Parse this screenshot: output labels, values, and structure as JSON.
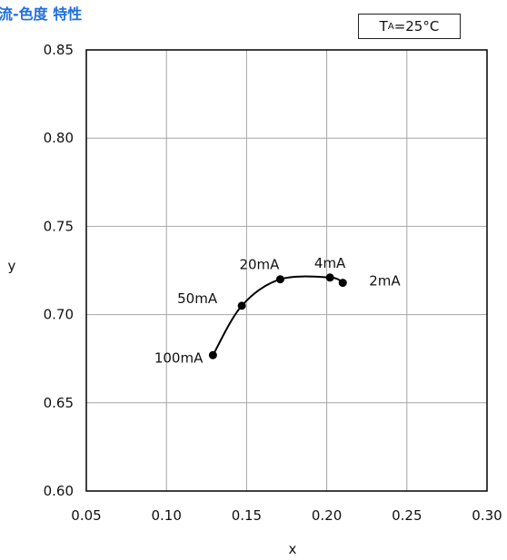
{
  "header": {
    "title": "電流-色度 特性"
  },
  "legend": {
    "prefix": "T",
    "subscript": "A",
    "suffix": "=25°C"
  },
  "chart_data": {
    "type": "line",
    "title": "",
    "xlabel": "x",
    "ylabel": "y",
    "xlim": [
      0.05,
      0.3
    ],
    "ylim": [
      0.6,
      0.85
    ],
    "x_ticks": [
      "0.05",
      "0.10",
      "0.15",
      "0.20",
      "0.25",
      "0.30"
    ],
    "y_ticks": [
      "0.60",
      "0.65",
      "0.70",
      "0.75",
      "0.80",
      "0.85"
    ],
    "grid": true,
    "series": [
      {
        "color": "#000000",
        "points": [
          {
            "x": 0.129,
            "y": 0.677,
            "label": "100mA"
          },
          {
            "x": 0.147,
            "y": 0.705,
            "label": "50mA"
          },
          {
            "x": 0.171,
            "y": 0.72,
            "label": "20mA"
          },
          {
            "x": 0.202,
            "y": 0.721,
            "label": "4mA"
          },
          {
            "x": 0.21,
            "y": 0.718,
            "label": "2mA"
          }
        ]
      }
    ]
  }
}
